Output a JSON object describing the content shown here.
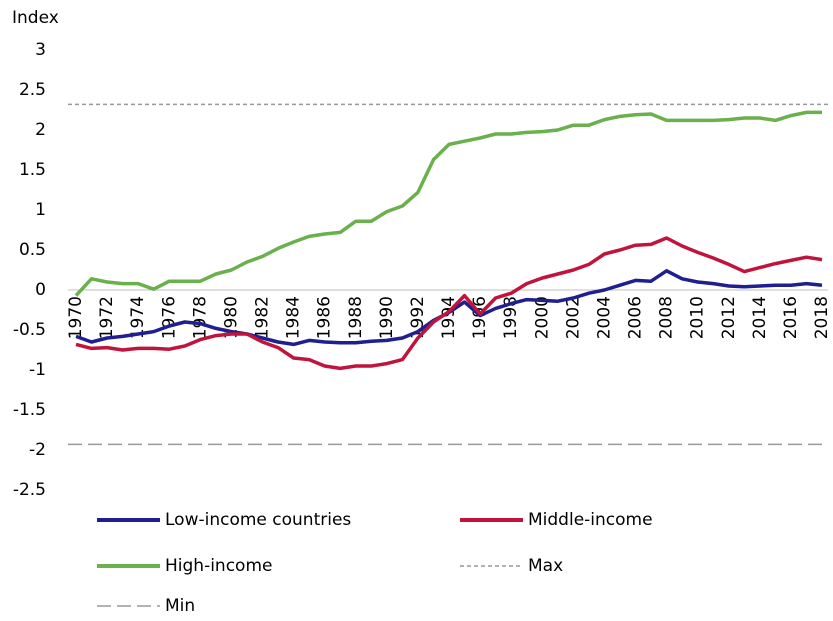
{
  "chart_data": {
    "type": "line",
    "y_axis_label": "Index",
    "categories": [
      "1970",
      null,
      "1972",
      null,
      "1974",
      null,
      "1976",
      null,
      "1978",
      null,
      "1980",
      null,
      "1982",
      null,
      "1984",
      null,
      "1986",
      null,
      "1988",
      null,
      "1990",
      null,
      "1992",
      null,
      "1994",
      null,
      "1996",
      null,
      "1998",
      null,
      "2000",
      null,
      "2002",
      null,
      "2004",
      null,
      "2006",
      null,
      "2008",
      null,
      "2010",
      null,
      "2012",
      null,
      "2014",
      null,
      "2016",
      null,
      "2018"
    ],
    "series": [
      {
        "name": "Low-income countries",
        "color": "#1f1f8f",
        "values": [
          -0.58,
          -0.65,
          -0.6,
          -0.58,
          -0.55,
          -0.52,
          -0.45,
          -0.4,
          -0.42,
          -0.48,
          -0.52,
          -0.55,
          -0.6,
          -0.65,
          -0.68,
          -0.63,
          -0.65,
          -0.66,
          -0.66,
          -0.64,
          -0.63,
          -0.6,
          -0.52,
          -0.38,
          -0.28,
          -0.15,
          -0.32,
          -0.23,
          -0.17,
          -0.12,
          -0.13,
          -0.14,
          -0.1,
          -0.04,
          0.0,
          0.06,
          0.12,
          0.11,
          0.24,
          0.14,
          0.1,
          0.08,
          0.05,
          0.04,
          0.05,
          0.06,
          0.06,
          0.08,
          0.06
        ]
      },
      {
        "name": "Middle-income",
        "color": "#c0143c",
        "values": [
          -0.68,
          -0.73,
          -0.72,
          -0.75,
          -0.73,
          -0.73,
          -0.74,
          -0.7,
          -0.62,
          -0.57,
          -0.55,
          -0.55,
          -0.65,
          -0.72,
          -0.85,
          -0.87,
          -0.95,
          -0.98,
          -0.95,
          -0.95,
          -0.92,
          -0.87,
          -0.6,
          -0.4,
          -0.27,
          -0.07,
          -0.3,
          -0.1,
          -0.04,
          0.08,
          0.15,
          0.2,
          0.25,
          0.32,
          0.45,
          0.5,
          0.56,
          0.57,
          0.65,
          0.55,
          0.47,
          0.4,
          0.32,
          0.23,
          0.28,
          0.33,
          0.37,
          0.41,
          0.38
        ]
      },
      {
        "name": "High-income",
        "color": "#6ab04c",
        "values": [
          -0.07,
          0.14,
          0.1,
          0.08,
          0.08,
          0.01,
          0.11,
          0.11,
          0.11,
          0.2,
          0.25,
          0.35,
          0.42,
          0.52,
          0.6,
          0.67,
          0.7,
          0.72,
          0.86,
          0.86,
          0.98,
          1.05,
          1.22,
          1.63,
          1.82,
          1.86,
          1.9,
          1.95,
          1.95,
          1.97,
          1.98,
          2.0,
          2.06,
          2.06,
          2.13,
          2.17,
          2.19,
          2.2,
          2.12,
          2.12,
          2.12,
          2.12,
          2.13,
          2.15,
          2.15,
          2.12,
          2.18,
          2.22,
          2.22
        ]
      }
    ],
    "reference_lines": [
      {
        "name": "Max",
        "value": 2.32,
        "color": "#999999",
        "dash": "4 3"
      },
      {
        "name": "Min",
        "value": -1.93,
        "color": "#999999",
        "dash": "14 6"
      }
    ],
    "ylim": [
      -2.5,
      3
    ],
    "yticks": [
      -2.5,
      -2,
      -1.5,
      -1,
      -0.5,
      0,
      0.5,
      1,
      1.5,
      2,
      2.5,
      3
    ],
    "grid": false
  }
}
